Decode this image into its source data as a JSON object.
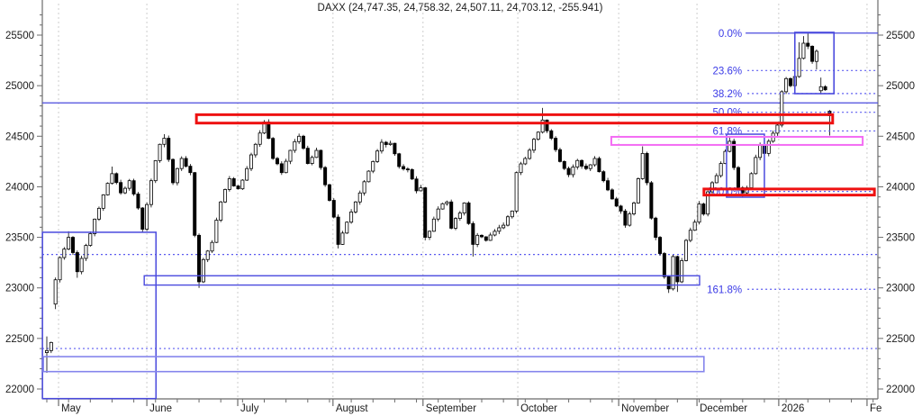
{
  "chart_data": {
    "type": "candlestick",
    "symbol": "DAXX",
    "title_text": "DAXX (24,747.35, 24,758.32, 24,507.11, 24,703.12, -255.941)",
    "last_ohlc": {
      "open": 24747.35,
      "high": 24758.32,
      "low": 24507.11,
      "close": 24703.12,
      "change": -255.941
    },
    "y_axis": {
      "major_ticks": [
        22000,
        22500,
        23000,
        23500,
        24000,
        24500,
        25000,
        25500
      ],
      "minor_step": 100,
      "ylim_visible": [
        21910,
        25845
      ]
    },
    "x_axis": {
      "months": [
        {
          "label": "May",
          "d": 2.7
        },
        {
          "label": "June",
          "d": 23.0
        },
        {
          "label": "July",
          "d": 43.9
        },
        {
          "label": "August",
          "d": 65.8
        },
        {
          "label": "September",
          "d": 86.5
        },
        {
          "label": "October",
          "d": 108.3
        },
        {
          "label": "November",
          "d": 131.5
        },
        {
          "label": "December",
          "d": 149.5
        },
        {
          "label": "2026",
          "d": 168.3
        },
        {
          "label": "Fe",
          "d": 188.6
        }
      ],
      "minor_tick_every_days": 5
    },
    "fibonacci": {
      "swing_high": 25520,
      "swing_low": 23954,
      "label_color": "#3a3ae6",
      "levels": [
        {
          "label": "0.0%",
          "price": 25520,
          "solid": true
        },
        {
          "label": "23.6%",
          "price": 25150,
          "solid": false
        },
        {
          "label": "38.2%",
          "price": 24922,
          "solid": false
        },
        {
          "label": "50.0%",
          "price": 24737,
          "solid": false
        },
        {
          "label": "61.8%",
          "price": 24552,
          "solid": false
        },
        {
          "label": "100.0%",
          "price": 23954,
          "solid": false
        },
        {
          "label": "161.8%",
          "price": 22986,
          "solid": false
        }
      ],
      "line_from_day": 161.1
    },
    "horizontal_lines": [
      {
        "name": "upper-alert-line",
        "price": 24830,
        "style": "solid"
      },
      {
        "name": "mid-alert-line",
        "price": 23330,
        "style": "dashed"
      },
      {
        "name": "lower-alert-line",
        "price": 22400,
        "style": "dashed"
      }
    ],
    "boxes": [
      {
        "name": "may-range-box",
        "d1": -1.0,
        "d2": 25.1,
        "p1": 23550,
        "p2": 21905,
        "color": "#4a4ade",
        "w": 1.5
      },
      {
        "name": "june-low-support-box",
        "d1": 22.4,
        "d2": 150.1,
        "p1": 23120,
        "p2": 23028,
        "color": "#4a4ade",
        "w": 1.4
      },
      {
        "name": "lower-support-box",
        "d1": -0.8,
        "d2": 151.1,
        "p1": 22320,
        "p2": 22172,
        "color": "#8585ec",
        "w": 1.6
      },
      {
        "name": "december-consolidation-box",
        "d1": 156.3,
        "d2": 165.0,
        "p1": 24520,
        "p2": 23897,
        "color": "#4a4ade",
        "w": 1.5
      },
      {
        "name": "january-top-box",
        "d1": 172.0,
        "d2": 181.0,
        "p1": 25527,
        "p2": 24921,
        "color": "#4a4ade",
        "w": 1.6
      },
      {
        "name": "red-resistance-box",
        "d1": 34.4,
        "d2": 180.7,
        "p1": 24713,
        "p2": 24630,
        "color": "#ee1111",
        "w": 3
      },
      {
        "name": "red-support-box",
        "d1": 151.1,
        "d2": 190.3,
        "p1": 23978,
        "p2": 23918,
        "color": "#ee1111",
        "w": 3
      },
      {
        "name": "pink-zone-box",
        "d1": 129.8,
        "d2": 187.6,
        "p1": 24494,
        "p2": 24414,
        "color": "#f46cf4",
        "w": 2
      }
    ],
    "series": {
      "days_total": 181,
      "swings": [
        [
          0,
          22380,
          22520,
          22160,
          null
        ],
        [
          1,
          22460,
          null,
          null,
          null
        ],
        [
          2,
          23080,
          null,
          22790,
          22840
        ],
        [
          3,
          23300,
          null,
          null,
          null
        ],
        [
          5,
          23500,
          23560,
          null,
          null
        ],
        [
          7,
          23160,
          null,
          23100,
          null
        ],
        [
          9,
          23420,
          null,
          null,
          null
        ],
        [
          11,
          23680,
          null,
          null,
          null
        ],
        [
          13,
          23920,
          null,
          null,
          null
        ],
        [
          15,
          24130,
          24200,
          null,
          null
        ],
        [
          17,
          23940,
          null,
          null,
          null
        ],
        [
          19,
          24060,
          null,
          null,
          null
        ],
        [
          21,
          23790,
          null,
          null,
          null
        ],
        [
          22,
          23580,
          null,
          23550,
          null
        ],
        [
          24,
          24060,
          null,
          null,
          null
        ],
        [
          26,
          24420,
          null,
          null,
          null
        ],
        [
          27,
          24480,
          24520,
          null,
          null
        ],
        [
          29,
          24040,
          null,
          null,
          null
        ],
        [
          31,
          24280,
          null,
          null,
          null
        ],
        [
          33,
          24140,
          null,
          null,
          null
        ],
        [
          34,
          23520,
          null,
          null,
          null
        ],
        [
          35,
          23060,
          null,
          23000,
          null
        ],
        [
          36,
          23280,
          null,
          null,
          null
        ],
        [
          38,
          23450,
          null,
          null,
          null
        ],
        [
          40,
          23850,
          null,
          null,
          null
        ],
        [
          42,
          24080,
          null,
          null,
          null
        ],
        [
          44,
          23980,
          null,
          null,
          null
        ],
        [
          46,
          24180,
          null,
          null,
          null
        ],
        [
          48,
          24420,
          null,
          null,
          null
        ],
        [
          50,
          24640,
          24660,
          null,
          null
        ],
        [
          52,
          24280,
          null,
          null,
          null
        ],
        [
          54,
          24140,
          null,
          null,
          null
        ],
        [
          56,
          24360,
          null,
          null,
          null
        ],
        [
          58,
          24500,
          null,
          null,
          null
        ],
        [
          60,
          24230,
          null,
          null,
          null
        ],
        [
          62,
          24360,
          null,
          null,
          null
        ],
        [
          64,
          24020,
          null,
          null,
          null
        ],
        [
          66,
          23700,
          null,
          null,
          null
        ],
        [
          67,
          23430,
          null,
          23390,
          null
        ],
        [
          69,
          23650,
          null,
          null,
          null
        ],
        [
          71,
          23850,
          null,
          null,
          null
        ],
        [
          73,
          24050,
          null,
          null,
          null
        ],
        [
          75,
          24250,
          null,
          null,
          null
        ],
        [
          77,
          24440,
          24470,
          null,
          null
        ],
        [
          79,
          24430,
          null,
          null,
          null
        ],
        [
          81,
          24200,
          null,
          null,
          null
        ],
        [
          83,
          24170,
          null,
          null,
          null
        ],
        [
          85,
          23960,
          null,
          null,
          null
        ],
        [
          86,
          23990,
          null,
          null,
          null
        ],
        [
          87,
          23500,
          null,
          23470,
          null
        ],
        [
          88,
          23560,
          null,
          null,
          null
        ],
        [
          90,
          23780,
          null,
          null,
          null
        ],
        [
          92,
          23850,
          null,
          null,
          null
        ],
        [
          93,
          23590,
          null,
          null,
          null
        ],
        [
          95,
          23740,
          null,
          null,
          null
        ],
        [
          96,
          23840,
          null,
          null,
          null
        ],
        [
          98,
          23430,
          null,
          23310,
          null
        ],
        [
          99,
          23520,
          null,
          null,
          null
        ],
        [
          101,
          23470,
          null,
          null,
          null
        ],
        [
          103,
          23560,
          null,
          null,
          null
        ],
        [
          105,
          23620,
          null,
          null,
          null
        ],
        [
          107,
          23760,
          null,
          null,
          null
        ],
        [
          108,
          24140,
          null,
          null,
          null
        ],
        [
          110,
          24280,
          null,
          null,
          null
        ],
        [
          112,
          24470,
          null,
          null,
          null
        ],
        [
          113,
          24540,
          null,
          null,
          null
        ],
        [
          114,
          24660,
          24780,
          null,
          null
        ],
        [
          116,
          24480,
          null,
          null,
          null
        ],
        [
          118,
          24250,
          null,
          null,
          null
        ],
        [
          120,
          24120,
          null,
          null,
          null
        ],
        [
          122,
          24260,
          null,
          null,
          null
        ],
        [
          124,
          24180,
          null,
          null,
          null
        ],
        [
          126,
          24280,
          null,
          null,
          null
        ],
        [
          128,
          24060,
          null,
          null,
          null
        ],
        [
          130,
          23880,
          null,
          null,
          null
        ],
        [
          132,
          23760,
          null,
          null,
          null
        ],
        [
          133,
          23620,
          null,
          null,
          null
        ],
        [
          135,
          23840,
          null,
          null,
          null
        ],
        [
          136,
          24080,
          null,
          null,
          null
        ],
        [
          137,
          24330,
          24400,
          null,
          null
        ],
        [
          138,
          24040,
          null,
          null,
          null
        ],
        [
          139,
          23690,
          null,
          null,
          null
        ],
        [
          140,
          23500,
          null,
          null,
          null
        ],
        [
          141,
          23340,
          null,
          null,
          null
        ],
        [
          142,
          23110,
          null,
          null,
          null
        ],
        [
          143,
          22990,
          null,
          22950,
          null
        ],
        [
          144,
          23310,
          null,
          null,
          null
        ],
        [
          145,
          23060,
          null,
          22960,
          null
        ],
        [
          146,
          23270,
          null,
          null,
          null
        ],
        [
          147,
          23470,
          null,
          null,
          null
        ],
        [
          148,
          23570,
          null,
          null,
          null
        ],
        [
          149,
          23650,
          null,
          null,
          null
        ],
        [
          150,
          23830,
          null,
          null,
          null
        ],
        [
          151,
          23730,
          null,
          null,
          null
        ],
        [
          152,
          23950,
          null,
          null,
          null
        ],
        [
          153,
          24040,
          null,
          null,
          null
        ],
        [
          154,
          24110,
          null,
          null,
          null
        ],
        [
          155,
          24230,
          null,
          null,
          null
        ],
        [
          156,
          24350,
          null,
          null,
          null
        ],
        [
          157,
          24450,
          24500,
          null,
          null
        ],
        [
          158,
          24190,
          null,
          null,
          null
        ],
        [
          159,
          23990,
          null,
          null,
          null
        ],
        [
          160,
          23940,
          null,
          23900,
          null
        ],
        [
          161,
          23990,
          null,
          null,
          null
        ],
        [
          162,
          24130,
          null,
          null,
          null
        ],
        [
          163,
          24290,
          null,
          null,
          null
        ],
        [
          164,
          24410,
          null,
          null,
          null
        ],
        [
          165,
          24330,
          null,
          null,
          null
        ],
        [
          166,
          24450,
          null,
          null,
          null
        ],
        [
          167,
          24530,
          null,
          null,
          null
        ],
        [
          168,
          24610,
          null,
          null,
          null
        ],
        [
          169,
          24940,
          null,
          null,
          null
        ],
        [
          170,
          25070,
          null,
          null,
          null
        ],
        [
          171,
          25000,
          null,
          null,
          null
        ],
        [
          172,
          25090,
          null,
          null,
          null
        ],
        [
          173,
          25270,
          25430,
          null,
          null
        ],
        [
          174,
          25420,
          25490,
          null,
          null
        ],
        [
          175,
          25390,
          25517,
          null,
          null
        ],
        [
          176,
          25240,
          null,
          null,
          null
        ],
        [
          177,
          25340,
          null,
          25160,
          null
        ],
        [
          178,
          24990,
          25080,
          24915,
          24950
        ],
        [
          179,
          24959,
          null,
          null,
          null
        ],
        [
          180,
          24703,
          null,
          null,
          null
        ]
      ]
    },
    "colors": {
      "up_candle_fill": "#ffffff",
      "down_candle_fill": "#000000",
      "candle_outline": "#000000",
      "blue": "#4a4ade",
      "dashed_blue": "#5c5cf0",
      "red": "#ee1111",
      "pink": "#f46cf4",
      "grid": "#cdcdcd",
      "axis": "#6b6b6b",
      "axis_text": "#1b1b1b"
    }
  }
}
